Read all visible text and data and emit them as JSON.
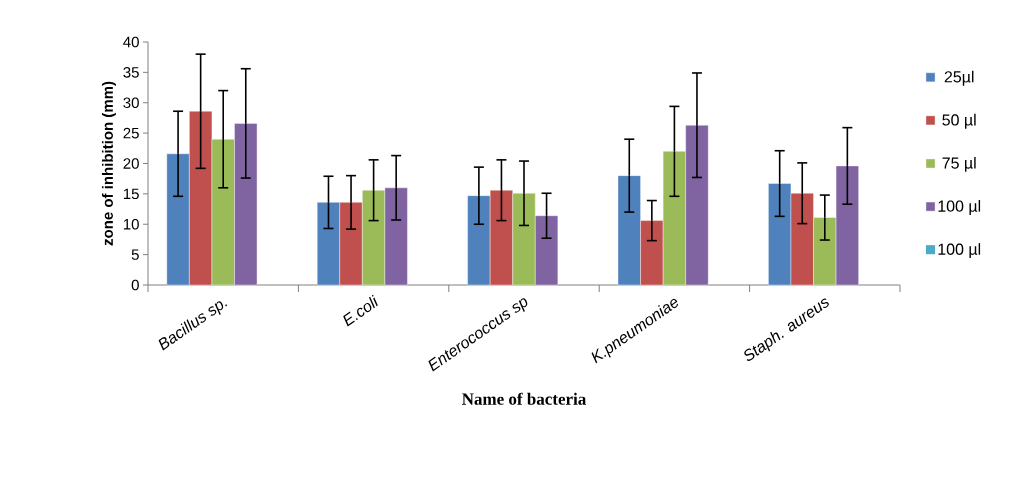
{
  "chart_data": {
    "type": "bar",
    "xlabel": "Name of bacteria",
    "ylabel": "zone of inhibition (mm)",
    "categories": [
      "Bacillus sp.",
      "E.coli",
      "Enterococcus sp",
      "K.pneumoniae",
      "Staph. aureus"
    ],
    "series": [
      {
        "name": "25µl",
        "color": "#4f81bd",
        "values": [
          21.6,
          13.6,
          14.7,
          18.0,
          16.7
        ],
        "errors": [
          7,
          4.3,
          4.7,
          6,
          5.4
        ]
      },
      {
        "name": "50 µl",
        "color": "#c0504d",
        "values": [
          28.6,
          13.6,
          15.6,
          10.6,
          15.1
        ],
        "errors": [
          9.4,
          4.4,
          5,
          3.3,
          5
        ]
      },
      {
        "name": "75 µl",
        "color": "#9bbb59",
        "values": [
          24,
          15.6,
          15.1,
          22.0,
          11.1
        ],
        "errors": [
          8,
          5,
          5.3,
          7.4,
          3.7
        ]
      },
      {
        "name": "100 µl",
        "color": "#8064a2",
        "values": [
          26.6,
          16,
          11.4,
          26.3,
          19.6
        ],
        "errors": [
          9,
          5.3,
          3.7,
          8.6,
          6.3
        ]
      },
      {
        "name": "100 µl",
        "color": "#4bacc6",
        "values": [
          null,
          null,
          null,
          null,
          null
        ]
      }
    ],
    "ylim": [
      0,
      40
    ],
    "yticks": [
      0,
      5,
      10,
      15,
      20,
      25,
      30,
      35,
      40
    ],
    "legend": "right"
  }
}
